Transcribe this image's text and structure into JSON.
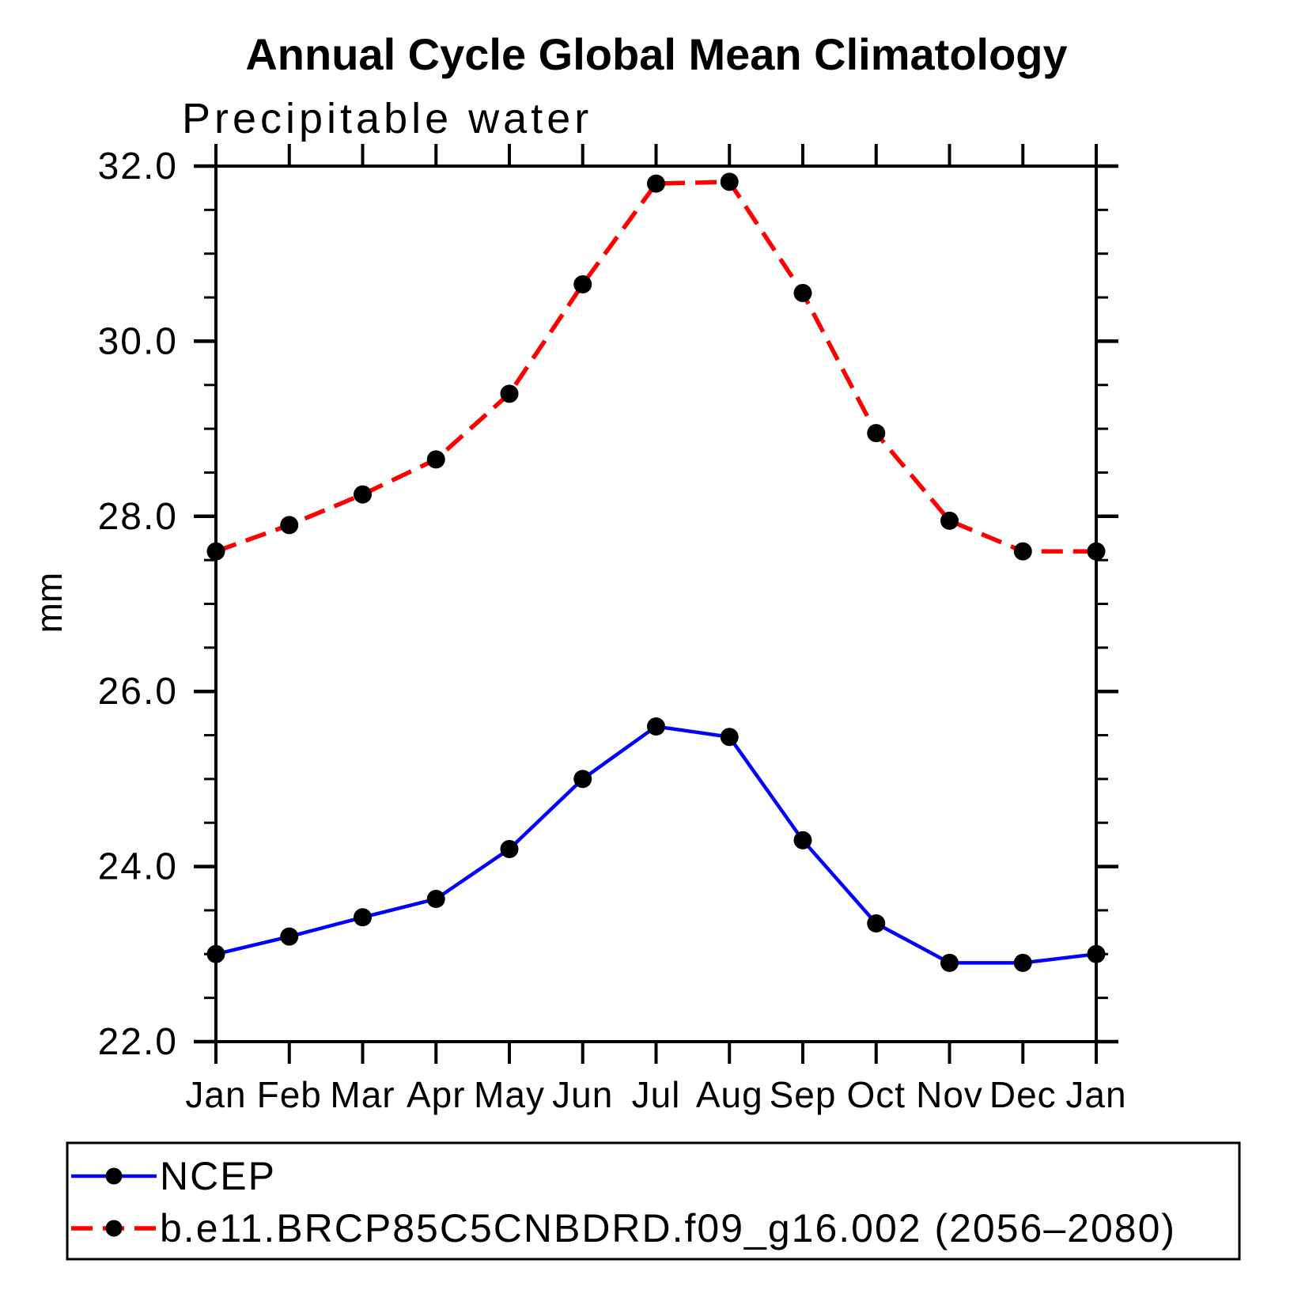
{
  "chart_data": {
    "type": "line",
    "title": "Annual Cycle Global Mean Climatology",
    "subtitle": "Precipitable water",
    "xlabel": "",
    "ylabel": "mm",
    "ylim": [
      22.0,
      32.0
    ],
    "y_major_step": 2.0,
    "y_minor_step": 0.5,
    "grid": false,
    "legend_position": "bottom-left-box",
    "x_tick_labels": [
      "Jan",
      "Feb",
      "Mar",
      "Apr",
      "May",
      "Jun",
      "Jul",
      "Aug",
      "Sep",
      "Oct",
      "Nov",
      "Dec",
      "Jan"
    ],
    "y_tick_labels": [
      "22.0",
      "24.0",
      "26.0",
      "28.0",
      "30.0",
      "32.0"
    ],
    "marker": "filled-circle",
    "marker_color": "#000000",
    "series": [
      {
        "name": "NCEP",
        "color": "#0000ff",
        "line_style": "solid",
        "values": [
          23.0,
          23.2,
          23.42,
          23.63,
          24.2,
          25.0,
          25.6,
          25.48,
          24.3,
          23.35,
          22.9,
          22.9,
          23.0
        ]
      },
      {
        "name": "b.e11.BRCP85C5CNBDRD.f09_g16.002 (2056–2080)",
        "color": "#ff0000",
        "line_style": "dashed",
        "values": [
          27.6,
          27.9,
          28.25,
          28.65,
          29.4,
          30.65,
          31.8,
          31.82,
          30.55,
          28.95,
          27.95,
          27.6,
          27.6
        ]
      }
    ]
  }
}
